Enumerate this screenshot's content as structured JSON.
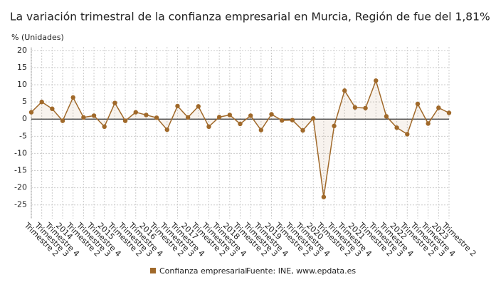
{
  "chart_data": {
    "type": "line",
    "title": "La variación trimestral de la confianza empresarial en Murcia, Región de fue del 1,81%",
    "y_label": "% (Unidades)",
    "source": "Fuente: INE, www.epdata.es",
    "categories": [
      "Trimestre 2",
      "Trimestre 3",
      "Trimestre 4",
      "2014",
      "Trimestre 2",
      "Trimestre 3",
      "Trimestre 4",
      "2015",
      "Trimestre 2",
      "Trimestre 3",
      "Trimestre 4",
      "2016",
      "Trimestre 2",
      "Trimestre 3",
      "Trimestre 4",
      "2017",
      "Trimestre 2",
      "Trimestre 3",
      "Trimestre 4",
      "2018",
      "Trimestre 2",
      "Trimestre 3",
      "Trimestre 4",
      "2019",
      "Trimestre 2",
      "Trimestre 3",
      "Trimestre 4",
      "2020",
      "Trimestre 2",
      "Trimestre 3",
      "Trimestre 4",
      "2021",
      "Trimestre 2",
      "Trimestre 3",
      "Trimestre 4",
      "2022",
      "Trimestre 2",
      "Trimestre 3",
      "Trimestre 4",
      "2023",
      "Trimestre 2"
    ],
    "series": [
      {
        "name": "Confianza empresarial",
        "color": "#a0692a",
        "values": [
          2,
          5,
          3,
          -0.5,
          6.3,
          0.5,
          1,
          -2.2,
          4.7,
          -0.5,
          2,
          1.2,
          0.4,
          -3.1,
          3.8,
          0.5,
          3.7,
          -2.2,
          0.6,
          1.2,
          -1.4,
          1,
          -3.2,
          1.4,
          -0.4,
          -0.3,
          -3.3,
          0.2,
          -22.7,
          -2,
          8.3,
          3.4,
          3.2,
          11.2,
          0.8,
          -2.5,
          -4.4,
          4.4,
          -1.3,
          3.3,
          1.81
        ]
      }
    ],
    "ylim": [
      -29,
      21
    ],
    "yticks": [
      -25,
      -20,
      -15,
      -10,
      -5,
      0,
      5,
      10,
      15,
      20
    ],
    "grid": true
  }
}
